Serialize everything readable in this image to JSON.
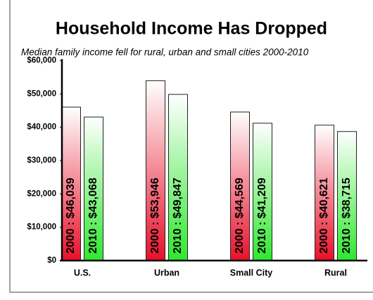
{
  "chart_data": {
    "type": "bar",
    "title": "Household Income Has Dropped",
    "subtitle": "Median family income fell for rural, urban and small cities 2000-2010",
    "categories": [
      "U.S.",
      "Urban",
      "Small City",
      "Rural"
    ],
    "series": [
      {
        "color": "#e8102a",
        "values": [
          46039,
          53946,
          44569,
          40621
        ],
        "value_labels": [
          "2000 : $46,039",
          "2000 : $53,946",
          "2000 : $44,569",
          "2000 : $40,621"
        ]
      },
      {
        "color": "#2ee82e",
        "values": [
          43068,
          49847,
          41209,
          38715
        ],
        "value_labels": [
          "2010 : $43,068",
          "2010 : $49,847",
          "2010 : $41,209",
          "2010 : $38,715"
        ]
      }
    ],
    "ylim": [
      0,
      60000
    ],
    "yticks": [
      {
        "value": 0,
        "label": "$0"
      },
      {
        "value": 10000,
        "label": "$10,000"
      },
      {
        "value": 20000,
        "label": "$20,000"
      },
      {
        "value": 30000,
        "label": "$30,000"
      },
      {
        "value": 40000,
        "label": "$40,000"
      },
      {
        "value": 50000,
        "label": "$50,000"
      },
      {
        "value": 60000,
        "label": "$60,000"
      }
    ],
    "grid": false
  }
}
